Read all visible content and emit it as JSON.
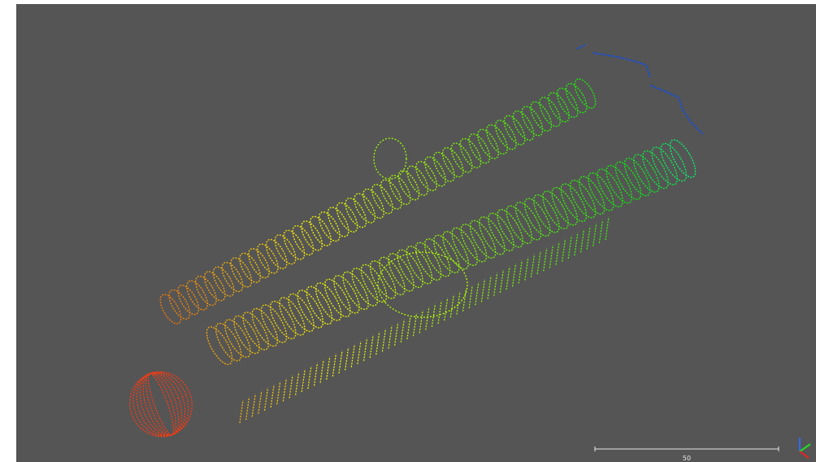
{
  "scale_bar": {
    "label": "50"
  }
}
